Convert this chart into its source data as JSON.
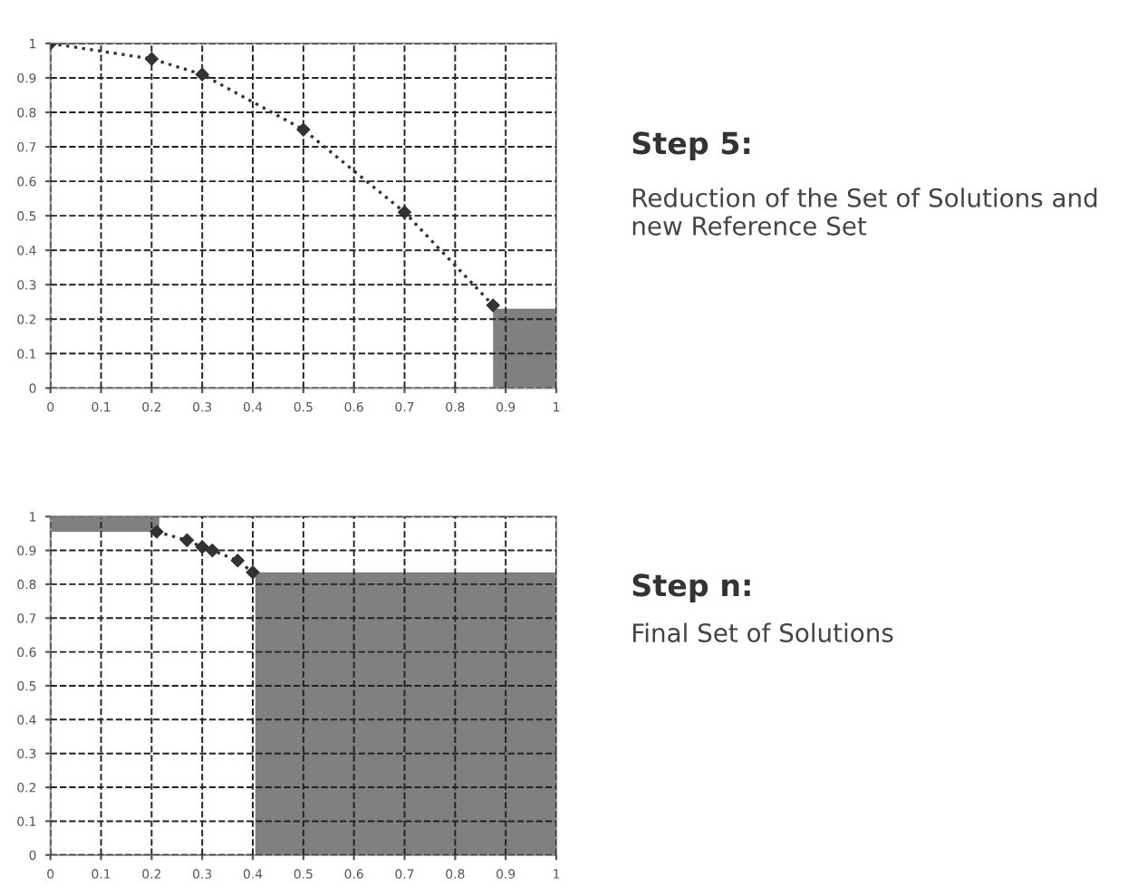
{
  "chart_data": [
    {
      "type": "line",
      "xlim": [
        0,
        1
      ],
      "ylim": [
        0,
        1
      ],
      "xticks": [
        0,
        0.1,
        0.2,
        0.3,
        0.4,
        0.5,
        0.6,
        0.7,
        0.8,
        0.9,
        1
      ],
      "yticks": [
        0,
        0.1,
        0.2,
        0.3,
        0.4,
        0.5,
        0.6,
        0.7,
        0.8,
        0.9,
        1
      ],
      "grid": true,
      "series": [
        {
          "type": "line",
          "color": "#333333",
          "marker": "diamond",
          "line_style": "dotted",
          "x": [
            0,
            0.2,
            0.3,
            0.5,
            0.7,
            0.875
          ],
          "values": [
            1,
            0.955,
            0.91,
            0.75,
            0.51,
            0.24
          ]
        },
        {
          "type": "area",
          "color": "#808080",
          "x": [
            0.875,
            1
          ],
          "values": [
            0.23,
            0.23
          ]
        }
      ]
    },
    {
      "type": "other",
      "title": "Step 5:",
      "subtitle": "Reduction of the Set of Solutions and new Reference Set"
    },
    {
      "type": "line",
      "xlim": [
        0,
        1
      ],
      "ylim": [
        0,
        1
      ],
      "xticks": [
        0,
        0.1,
        0.2,
        0.3,
        0.4,
        0.5,
        0.6,
        0.7,
        0.8,
        0.9,
        1
      ],
      "yticks": [
        0,
        0.1,
        0.2,
        0.3,
        0.4,
        0.5,
        0.6,
        0.7,
        0.8,
        0.9,
        1
      ],
      "grid": true,
      "series": [
        {
          "type": "line",
          "color": "#808080",
          "x": [
            0,
            0.215
          ],
          "values": [
            1,
            1
          ],
          "lower": [
            0.955,
            0.955
          ],
          "upper": [
            1,
            1
          ]
        },
        {
          "type": "area",
          "color": "#808080",
          "x": [
            0.405,
            1
          ],
          "values": [
            0.835,
            0.835
          ]
        },
        {
          "type": "line",
          "color": "#333333",
          "marker": "diamond",
          "line_style": "dotted",
          "x": [
            0.21,
            0.27,
            0.3,
            0.32,
            0.37,
            0.4
          ],
          "values": [
            0.955,
            0.93,
            0.91,
            0.9,
            0.87,
            0.835
          ]
        }
      ]
    },
    {
      "type": "other",
      "title": "Step n:",
      "subtitle": "Final Set of Solutions"
    }
  ]
}
